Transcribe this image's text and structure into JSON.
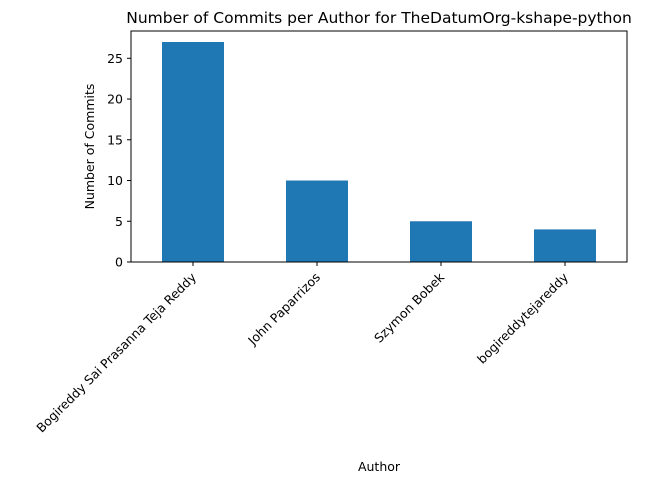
{
  "chart_data": {
    "type": "bar",
    "title": "Number of Commits per Author for TheDatumOrg-kshape-python",
    "xlabel": "Author",
    "ylabel": "Number of Commits",
    "categories": [
      "Bogireddy Sai Prasanna Teja Reddy",
      "John Paparrizos",
      "Szymon Bobek",
      "bogireddytejareddy"
    ],
    "values": [
      27,
      10,
      5,
      4
    ],
    "ylim": [
      0,
      28.35
    ],
    "yticks": [
      "0",
      "5",
      "10",
      "15",
      "20",
      "25"
    ],
    "bar_color": "#1f77b4",
    "grid": false,
    "legend": "none"
  }
}
